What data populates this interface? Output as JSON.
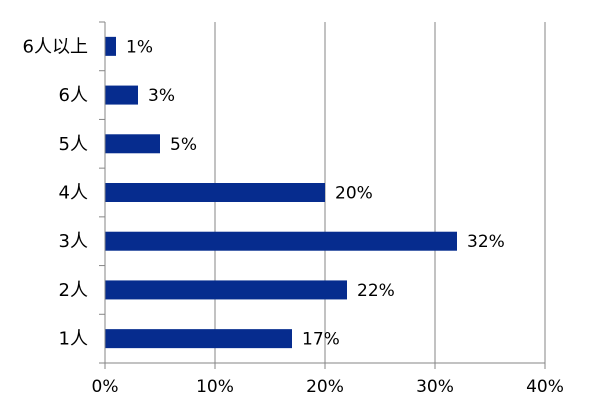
{
  "chart_data": {
    "type": "bar",
    "orientation": "horizontal",
    "title": "",
    "xlabel": "",
    "ylabel": "",
    "categories": [
      "1人",
      "2人",
      "3人",
      "4人",
      "5人",
      "6人",
      "6人以上"
    ],
    "values": [
      17,
      22,
      32,
      20,
      5,
      3,
      1
    ],
    "data_labels": [
      "17%",
      "22%",
      "32%",
      "20%",
      "5%",
      "3%",
      "1%"
    ],
    "xlim": [
      0,
      40
    ],
    "x_ticks": [
      0,
      10,
      20,
      30,
      40
    ],
    "x_tick_labels": [
      "0%",
      "10%",
      "20%",
      "30%",
      "40%"
    ],
    "grid": "vertical",
    "legend": "none",
    "bar_color": "#062C8E"
  }
}
